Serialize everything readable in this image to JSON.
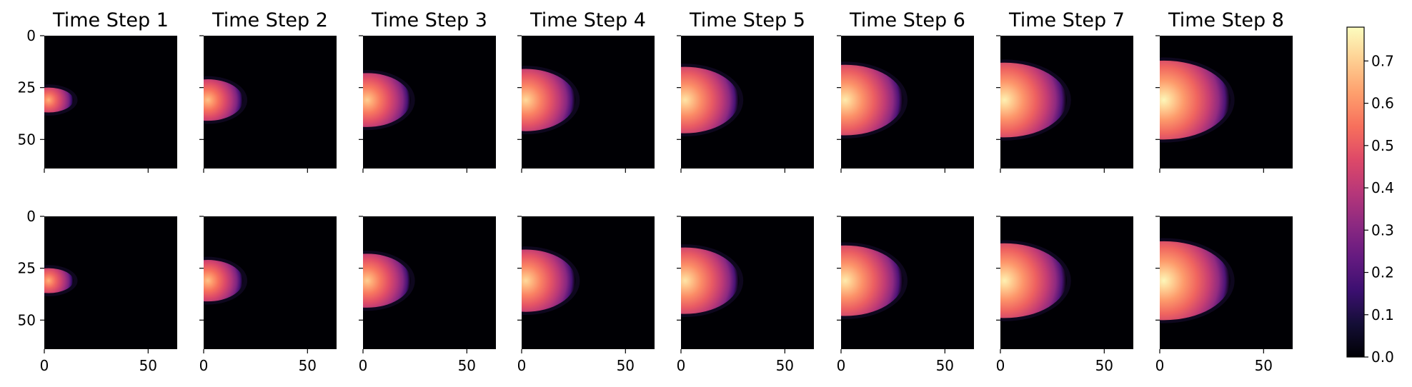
{
  "chart_data": {
    "type": "heatmap",
    "colormap": "magma",
    "rows": 2,
    "columns": 8,
    "panel_titles": [
      "Time Step 1",
      "Time Step 2",
      "Time Step 3",
      "Time Step 4",
      "Time Step 5",
      "Time Step 6",
      "Time Step 7",
      "Time Step 8"
    ],
    "x_range": [
      0,
      64
    ],
    "y_range": [
      0,
      64
    ],
    "x_ticks": [
      0,
      50
    ],
    "x_tick_labels": [
      "0",
      "50"
    ],
    "y_ticks": [
      0,
      25,
      50
    ],
    "y_tick_labels": [
      "0",
      "25",
      "50"
    ],
    "colorbar": {
      "range": [
        0.0,
        0.78
      ],
      "ticks": [
        0.0,
        0.1,
        0.2,
        0.3,
        0.4,
        0.5,
        0.6,
        0.7
      ],
      "tick_labels": [
        "0.0",
        "0.1",
        "0.2",
        "0.3",
        "0.4",
        "0.5",
        "0.6",
        "0.7"
      ]
    },
    "plume": {
      "source": [
        2,
        31
      ],
      "front_x_by_step": [
        12,
        17,
        21,
        24,
        26,
        28,
        30,
        32
      ],
      "half_height_by_step": [
        5,
        9,
        12,
        14,
        15,
        16,
        17,
        18
      ],
      "peak_value_by_step": [
        0.65,
        0.68,
        0.7,
        0.72,
        0.74,
        0.75,
        0.76,
        0.77
      ]
    }
  }
}
